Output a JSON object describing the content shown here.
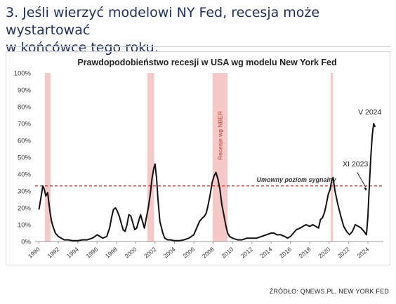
{
  "headline": {
    "line1": "3. Jeśli wierzyć modelowi NY Fed, recesja może wystartować",
    "line2": "w końcówce tego roku."
  },
  "source": "ŹRÓDŁO: QNEWS.PL, NEW YORK FED",
  "chart_data": {
    "type": "line",
    "title": "Prawdopodobieństwo recesji w USA wg modelu New York Fed",
    "xlabel": "",
    "ylabel": "",
    "xlim": [
      1989.6,
      2025.6
    ],
    "ylim": [
      0,
      100
    ],
    "y_ticks": [
      0,
      10,
      20,
      30,
      40,
      50,
      60,
      70,
      80,
      90,
      100
    ],
    "y_tick_labels": [
      "0%",
      "10%",
      "20%",
      "30%",
      "40%",
      "50%",
      "60%",
      "70%",
      "80%",
      "90%",
      "100%"
    ],
    "x_ticks": [
      1990,
      1992,
      1994,
      1996,
      1998,
      2000,
      2002,
      2004,
      2006,
      2008,
      2010,
      2012,
      2014,
      2016,
      2018,
      2020,
      2022,
      2024
    ],
    "x_tick_labels": [
      "1990",
      "1992",
      "1994",
      "1996",
      "1998",
      "2000",
      "2002",
      "2004",
      "2006",
      "2008",
      "2010",
      "2012",
      "2014",
      "2016",
      "2018",
      "2020",
      "2022",
      "2024"
    ],
    "recessions": [
      [
        1990.6,
        1991.2
      ],
      [
        2001.2,
        2001.9
      ],
      [
        2007.95,
        2009.5
      ],
      [
        2020.15,
        2020.4
      ]
    ],
    "recession_label": "Recesje wg NBER",
    "threshold": {
      "value": 33,
      "label": "Umowny poziom sygnalny",
      "color": "#d63b3b"
    },
    "annotations": [
      {
        "text": "XI 2023",
        "x": 2023.85,
        "y": 33
      },
      {
        "text": "V 2024",
        "x": 2024.35,
        "y": 70
      }
    ],
    "series": [
      {
        "color": "#111111",
        "x": [
          1990.0,
          1990.2,
          1990.4,
          1990.55,
          1990.7,
          1990.9,
          1991.0,
          1991.15,
          1991.3,
          1991.5,
          1991.7,
          1992.0,
          1992.3,
          1992.6,
          1993.0,
          1993.5,
          1994.0,
          1994.5,
          1995.0,
          1995.5,
          1995.8,
          1996.0,
          1996.3,
          1996.6,
          1997.0,
          1997.3,
          1997.5,
          1997.7,
          1997.9,
          1998.1,
          1998.3,
          1998.5,
          1998.7,
          1998.9,
          1999.1,
          1999.3,
          1999.5,
          1999.7,
          1999.9,
          2000.1,
          2000.3,
          2000.5,
          2000.7,
          2000.9,
          2001.1,
          2001.3,
          2001.5,
          2001.7,
          2001.85,
          2002.0,
          2002.15,
          2002.3,
          2002.5,
          2002.8,
          2003.0,
          2003.3,
          2003.6,
          2004.0,
          2004.5,
          2005.0,
          2005.5,
          2006.0,
          2006.3,
          2006.6,
          2006.9,
          2007.1,
          2007.3,
          2007.5,
          2007.7,
          2007.9,
          2008.1,
          2008.3,
          2008.5,
          2008.7,
          2008.9,
          2009.1,
          2009.3,
          2009.5,
          2009.7,
          2010.0,
          2010.5,
          2011.0,
          2011.5,
          2012.0,
          2012.5,
          2013.0,
          2013.5,
          2014.0,
          2014.3,
          2014.6,
          2015.0,
          2015.4,
          2015.7,
          2016.0,
          2016.3,
          2016.6,
          2017.0,
          2017.3,
          2017.6,
          2018.0,
          2018.3,
          2018.6,
          2018.9,
          2019.1,
          2019.3,
          2019.5,
          2019.7,
          2019.9,
          2020.1,
          2020.25,
          2020.4,
          2020.6,
          2020.9,
          2021.2,
          2021.5,
          2021.8,
          2022.1,
          2022.4,
          2022.7,
          2023.0,
          2023.3,
          2023.6,
          2023.85,
          2024.0,
          2024.15,
          2024.3,
          2024.45,
          2024.6,
          2024.75
        ],
        "values": [
          19,
          26,
          33,
          31,
          27,
          29,
          24,
          17,
          12,
          8,
          5,
          3,
          2,
          1,
          1,
          0.5,
          0.5,
          1,
          1,
          2,
          3,
          4,
          3,
          2,
          3,
          8,
          14,
          19,
          20,
          18,
          15,
          11,
          7,
          6,
          10,
          16,
          15,
          11,
          7,
          8,
          12,
          16,
          12,
          8,
          14,
          20,
          28,
          38,
          43,
          46,
          38,
          25,
          12,
          5,
          2,
          1,
          1,
          0.5,
          0.5,
          1,
          2,
          4,
          8,
          12,
          14,
          15,
          17,
          22,
          28,
          35,
          39,
          41,
          37,
          31,
          22,
          16,
          10,
          5,
          3,
          2,
          1,
          1,
          2,
          2,
          2,
          3,
          4,
          5,
          5,
          4,
          4,
          3,
          2,
          3,
          5,
          7,
          8,
          9,
          10,
          9,
          10,
          9,
          8,
          13,
          14,
          17,
          22,
          28,
          31,
          36,
          38,
          30,
          22,
          15,
          9,
          6,
          4,
          6,
          10,
          9,
          8,
          6,
          4,
          15,
          33,
          50,
          63,
          70,
          68
        ]
      }
    ]
  }
}
